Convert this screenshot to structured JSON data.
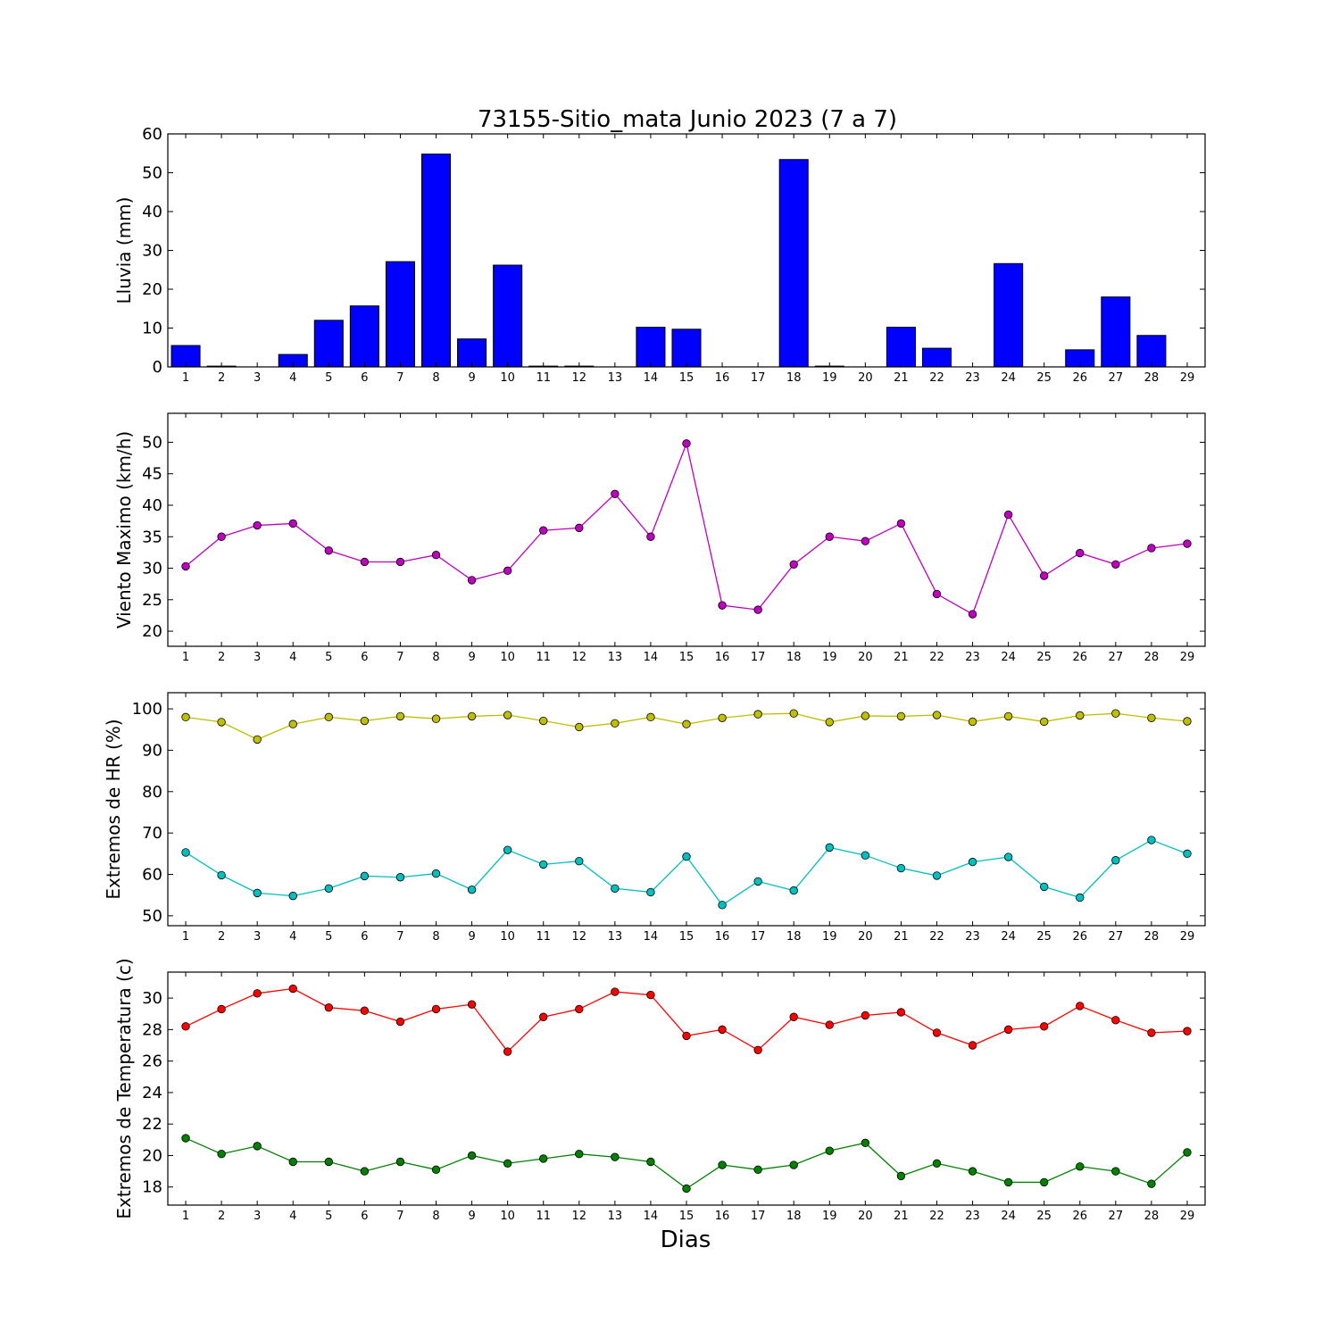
{
  "chart_data": {
    "title": "73155-Sitio_mata Junio 2023  (7 a 7)",
    "xlabel": "Dias",
    "days": [
      1,
      2,
      3,
      4,
      5,
      6,
      7,
      8,
      9,
      10,
      11,
      12,
      13,
      14,
      15,
      16,
      17,
      18,
      19,
      20,
      21,
      22,
      23,
      24,
      25,
      26,
      27,
      28,
      29
    ],
    "panels": [
      {
        "id": "lluvia",
        "type": "bar",
        "ylabel": "Lluvia (mm)",
        "ylim": [
          0,
          60
        ],
        "yticks": [
          0,
          10,
          20,
          30,
          40,
          50,
          60
        ],
        "series": [
          {
            "color": "#0000ff",
            "values": [
              5.5,
              0.2,
              0.0,
              3.2,
              12.0,
              15.7,
              27.1,
              54.8,
              7.2,
              26.2,
              0.2,
              0.2,
              0.0,
              10.2,
              9.7,
              0.0,
              0.0,
              53.4,
              0.2,
              0.0,
              10.2,
              4.8,
              0.0,
              26.6,
              0.0,
              4.4,
              18.0,
              8.1,
              0.0
            ]
          }
        ]
      },
      {
        "id": "viento",
        "type": "line",
        "ylabel": "Viento Maximo (km/h)",
        "ylim": [
          17.6,
          54.6
        ],
        "yticks": [
          20,
          25,
          30,
          35,
          40,
          45,
          50
        ],
        "series": [
          {
            "color": "#bf00bf",
            "values": [
              30.3,
              35.0,
              36.8,
              37.1,
              32.8,
              31.0,
              31.0,
              32.1,
              28.1,
              29.6,
              36.0,
              36.4,
              41.8,
              35.0,
              49.8,
              24.1,
              23.4,
              30.6,
              35.0,
              34.3,
              37.1,
              25.9,
              22.7,
              38.5,
              28.8,
              32.4,
              30.6,
              33.2,
              33.9
            ]
          }
        ]
      },
      {
        "id": "hr",
        "type": "line",
        "ylabel": "Extremos de HR (%)",
        "ylim": [
          47.6,
          103.9
        ],
        "yticks": [
          50,
          60,
          70,
          80,
          90,
          100
        ],
        "series": [
          {
            "color": "#bfbf00",
            "values": [
              98.0,
              96.8,
              92.6,
              96.3,
              98.0,
              97.1,
              98.2,
              97.6,
              98.2,
              98.5,
              97.1,
              95.6,
              96.5,
              98.0,
              96.3,
              97.8,
              98.7,
              98.9,
              96.8,
              98.3,
              98.2,
              98.5,
              96.9,
              98.2,
              96.9,
              98.4,
              98.9,
              97.8,
              97.0
            ]
          },
          {
            "color": "#00bfbf",
            "values": [
              65.3,
              59.8,
              55.5,
              54.8,
              56.6,
              59.6,
              59.3,
              60.2,
              56.3,
              65.9,
              62.4,
              63.2,
              56.6,
              55.7,
              64.3,
              52.6,
              58.3,
              56.1,
              66.5,
              64.6,
              61.5,
              59.7,
              63.0,
              64.2,
              57.0,
              54.4,
              63.4,
              68.3,
              65.0
            ]
          }
        ]
      },
      {
        "id": "temp",
        "type": "line",
        "ylabel": "Extremos de Temperatura (c)",
        "ylim": [
          16.85,
          31.65
        ],
        "yticks": [
          18,
          20,
          22,
          24,
          26,
          28,
          30
        ],
        "series": [
          {
            "color": "#ff0000",
            "values": [
              28.2,
              29.3,
              30.3,
              30.6,
              29.4,
              29.2,
              28.5,
              29.3,
              29.6,
              26.6,
              28.8,
              29.3,
              30.4,
              30.2,
              27.6,
              28.0,
              26.7,
              28.8,
              28.3,
              28.9,
              29.1,
              27.8,
              27.0,
              28.0,
              28.2,
              29.5,
              28.6,
              27.8,
              27.9
            ]
          },
          {
            "color": "#008000",
            "values": [
              21.1,
              20.1,
              20.6,
              19.6,
              19.6,
              19.0,
              19.6,
              19.1,
              20.0,
              19.5,
              19.8,
              20.1,
              19.9,
              19.6,
              17.9,
              19.4,
              19.1,
              19.4,
              20.3,
              20.8,
              18.7,
              19.5,
              19.0,
              18.3,
              18.3,
              19.3,
              19.0,
              18.2,
              20.2
            ]
          }
        ]
      }
    ]
  }
}
